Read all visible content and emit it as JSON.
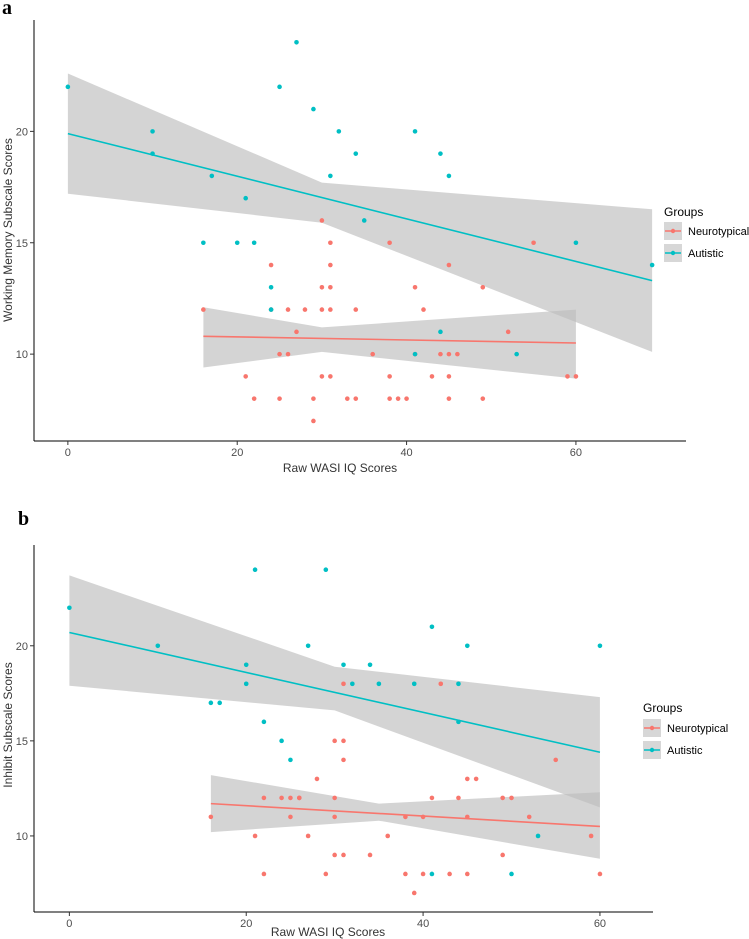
{
  "colors": {
    "neurotypical": "#F8766D",
    "autistic": "#00BFC4",
    "band": "#bdbdbd",
    "axis": "#000000"
  },
  "chart_data": [
    {
      "panel": "a",
      "type": "scatter",
      "xlabel": "Raw WASI IQ Scores",
      "ylabel": "Working Memory Subscale Scores",
      "xlim": [
        -4,
        73
      ],
      "ylim": [
        6.1,
        25
      ],
      "xticks": [
        0,
        20,
        40,
        60
      ],
      "yticks": [
        10,
        15,
        20
      ],
      "legend": {
        "title": "Groups",
        "position": "right",
        "entries": [
          "Neurotypical",
          "Autistic"
        ]
      },
      "series": [
        {
          "name": "Neurotypical",
          "color": "#F8766D",
          "points": [
            [
              16,
              12
            ],
            [
              21,
              9
            ],
            [
              22,
              8
            ],
            [
              24,
              14
            ],
            [
              24,
              12
            ],
            [
              25,
              10
            ],
            [
              25,
              8
            ],
            [
              26,
              12
            ],
            [
              26,
              10
            ],
            [
              27,
              11
            ],
            [
              28,
              12
            ],
            [
              29,
              8
            ],
            [
              29,
              7
            ],
            [
              30,
              16
            ],
            [
              30,
              13
            ],
            [
              30,
              12
            ],
            [
              30,
              9
            ],
            [
              31,
              15
            ],
            [
              31,
              14
            ],
            [
              31,
              13
            ],
            [
              31,
              12
            ],
            [
              31,
              9
            ],
            [
              33,
              8
            ],
            [
              34,
              12
            ],
            [
              34,
              8
            ],
            [
              36,
              10
            ],
            [
              38,
              15
            ],
            [
              38,
              9
            ],
            [
              38,
              8
            ],
            [
              39,
              8
            ],
            [
              40,
              8
            ],
            [
              41,
              13
            ],
            [
              41,
              10
            ],
            [
              42,
              12
            ],
            [
              43,
              9
            ],
            [
              44,
              10
            ],
            [
              45,
              14
            ],
            [
              45,
              10
            ],
            [
              45,
              9
            ],
            [
              45,
              8
            ],
            [
              46,
              10
            ],
            [
              49,
              13
            ],
            [
              49,
              8
            ],
            [
              52,
              11
            ],
            [
              55,
              15
            ],
            [
              59,
              9
            ],
            [
              60,
              9
            ]
          ],
          "fit": {
            "x": [
              16,
              60
            ],
            "y": [
              10.8,
              10.5
            ]
          },
          "band": {
            "x": [
              16,
              30,
              60
            ],
            "lower": [
              9.4,
              10.1,
              8.9
            ],
            "upper": [
              12.1,
              11.2,
              12.0
            ]
          }
        },
        {
          "name": "Autistic",
          "color": "#00BFC4",
          "points": [
            [
              0,
              22
            ],
            [
              10,
              20
            ],
            [
              10,
              19
            ],
            [
              16,
              15
            ],
            [
              17,
              18
            ],
            [
              20,
              15
            ],
            [
              21,
              17
            ],
            [
              22,
              15
            ],
            [
              24,
              13
            ],
            [
              24,
              12
            ],
            [
              25,
              22
            ],
            [
              27,
              24
            ],
            [
              29,
              21
            ],
            [
              31,
              18
            ],
            [
              32,
              20
            ],
            [
              34,
              19
            ],
            [
              35,
              16
            ],
            [
              41,
              20
            ],
            [
              41,
              10
            ],
            [
              44,
              19
            ],
            [
              44,
              11
            ],
            [
              45,
              18
            ],
            [
              53,
              10
            ],
            [
              60,
              15
            ],
            [
              69,
              14
            ]
          ],
          "fit": {
            "x": [
              0,
              69
            ],
            "y": [
              19.9,
              13.3
            ]
          },
          "band": {
            "x": [
              0,
              30,
              69
            ],
            "lower": [
              17.2,
              15.9,
              10.1
            ],
            "upper": [
              22.6,
              17.7,
              16.5
            ]
          }
        }
      ]
    },
    {
      "panel": "b",
      "type": "scatter",
      "xlabel": "Raw WASI IQ Scores",
      "ylabel": "Inhibit Subscale Scores",
      "xlim": [
        -4,
        66
      ],
      "ylim": [
        6,
        25.3
      ],
      "xticks": [
        0,
        20,
        40,
        60
      ],
      "yticks": [
        10,
        15,
        20
      ],
      "legend": {
        "title": "Groups",
        "position": "right",
        "entries": [
          "Neurotypical",
          "Autistic"
        ]
      },
      "series": [
        {
          "name": "Neurotypical",
          "color": "#F8766D",
          "points": [
            [
              16,
              11
            ],
            [
              21,
              10
            ],
            [
              22,
              12
            ],
            [
              22,
              8
            ],
            [
              24,
              12
            ],
            [
              25,
              12
            ],
            [
              25,
              11
            ],
            [
              26,
              12
            ],
            [
              26,
              12
            ],
            [
              27,
              10
            ],
            [
              28,
              13
            ],
            [
              29,
              8
            ],
            [
              30,
              15
            ],
            [
              30,
              12
            ],
            [
              30,
              11
            ],
            [
              30,
              9
            ],
            [
              31,
              15
            ],
            [
              31,
              14
            ],
            [
              31,
              9
            ],
            [
              31,
              18
            ],
            [
              34,
              9
            ],
            [
              36,
              10
            ],
            [
              38,
              11
            ],
            [
              38,
              8
            ],
            [
              39,
              7
            ],
            [
              40,
              11
            ],
            [
              40,
              8
            ],
            [
              41,
              12
            ],
            [
              42,
              18
            ],
            [
              43,
              8
            ],
            [
              44,
              12
            ],
            [
              45,
              13
            ],
            [
              45,
              11
            ],
            [
              45,
              8
            ],
            [
              46,
              13
            ],
            [
              49,
              12
            ],
            [
              49,
              9
            ],
            [
              50,
              12
            ],
            [
              52,
              11
            ],
            [
              55,
              14
            ],
            [
              59,
              10
            ],
            [
              60,
              8
            ]
          ],
          "fit": {
            "x": [
              16,
              60
            ],
            "y": [
              11.7,
              10.5
            ]
          },
          "band": {
            "x": [
              16,
              35,
              60
            ],
            "lower": [
              10.2,
              10.8,
              8.8
            ],
            "upper": [
              13.2,
              11.7,
              12.3
            ]
          }
        },
        {
          "name": "Autistic",
          "color": "#00BFC4",
          "points": [
            [
              0,
              22
            ],
            [
              10,
              20
            ],
            [
              16,
              17
            ],
            [
              17,
              17
            ],
            [
              20,
              19
            ],
            [
              20,
              18
            ],
            [
              21,
              24
            ],
            [
              22,
              16
            ],
            [
              24,
              15
            ],
            [
              25,
              14
            ],
            [
              27,
              20
            ],
            [
              29,
              24
            ],
            [
              31,
              19
            ],
            [
              32,
              18
            ],
            [
              34,
              19
            ],
            [
              35,
              18
            ],
            [
              39,
              18
            ],
            [
              41,
              21
            ],
            [
              41,
              8
            ],
            [
              44,
              18
            ],
            [
              44,
              16
            ],
            [
              45,
              20
            ],
            [
              50,
              8
            ],
            [
              53,
              10
            ],
            [
              60,
              20
            ]
          ],
          "fit": {
            "x": [
              0,
              60
            ],
            "y": [
              20.7,
              14.4
            ]
          },
          "band": {
            "x": [
              0,
              30,
              60
            ],
            "lower": [
              17.9,
              16.6,
              11.5
            ],
            "upper": [
              23.7,
              18.9,
              17.3
            ]
          }
        }
      ]
    }
  ]
}
